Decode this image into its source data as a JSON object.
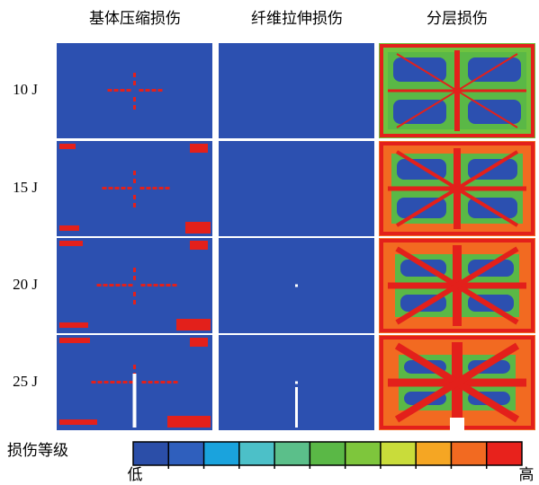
{
  "columns": [
    "基体压缩损伤",
    "纤维拉伸损伤",
    "分层损伤"
  ],
  "rows": [
    "10 J",
    "15 J",
    "20 J",
    "25 J"
  ],
  "legend": {
    "title": "损伤等级",
    "low": "低",
    "high": "高",
    "colors": [
      "#2b4ea8",
      "#2f5fbd",
      "#1aa3dd",
      "#4cc0c8",
      "#5bbf8a",
      "#5ab846",
      "#7ec63c",
      "#c9dc3a",
      "#f5a623",
      "#f26a21",
      "#e8221c"
    ]
  }
}
